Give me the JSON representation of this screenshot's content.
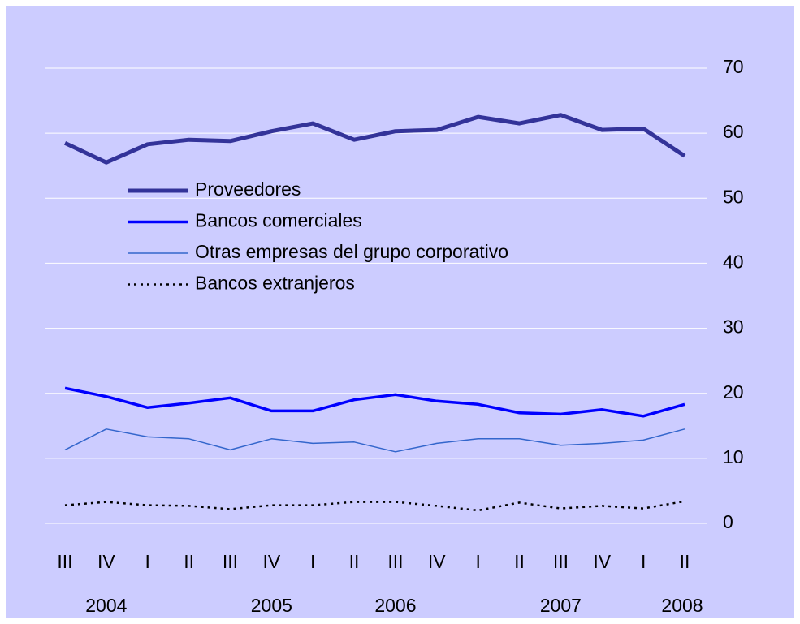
{
  "chart_data": {
    "type": "line",
    "categories": [
      "III",
      "IV",
      "I",
      "II",
      "III",
      "IV",
      "I",
      "II",
      "III",
      "IV",
      "I",
      "II",
      "III",
      "IV",
      "I",
      "II"
    ],
    "years": [
      null,
      "2004",
      null,
      null,
      null,
      "2005",
      null,
      null,
      "2006",
      null,
      null,
      null,
      "2007",
      null,
      null,
      "2008"
    ],
    "series": [
      {
        "name": "Proveedores",
        "color": "#333399",
        "linewidth": 5,
        "linestyle": "solid",
        "values": [
          58.5,
          55.5,
          58.3,
          59.0,
          58.8,
          60.3,
          61.5,
          59.0,
          60.3,
          60.5,
          62.5,
          61.5,
          62.8,
          60.5,
          60.7,
          56.5
        ]
      },
      {
        "name": "Bancos comerciales",
        "color": "#0000ff",
        "linewidth": 3.5,
        "linestyle": "solid",
        "values": [
          20.8,
          19.5,
          17.8,
          18.5,
          19.3,
          17.3,
          17.3,
          19.0,
          19.8,
          18.8,
          18.3,
          17.0,
          16.8,
          17.5,
          16.5,
          18.3
        ]
      },
      {
        "name": "Otras empresas del grupo corporativo",
        "color": "#3366cc",
        "linewidth": 1.5,
        "linestyle": "solid",
        "values": [
          11.3,
          14.5,
          13.3,
          13.0,
          11.3,
          13.0,
          12.3,
          12.5,
          11.0,
          12.3,
          13.0,
          13.0,
          12.0,
          12.3,
          12.8,
          14.5
        ]
      },
      {
        "name": "Bancos extranjeros",
        "color": "#000000",
        "linewidth": 2.5,
        "linestyle": "dotted",
        "values": [
          2.8,
          3.3,
          2.8,
          2.7,
          2.2,
          2.8,
          2.8,
          3.3,
          3.3,
          2.7,
          2.0,
          3.2,
          2.3,
          2.7,
          2.3,
          3.4
        ]
      }
    ],
    "ylim": [
      0,
      70
    ],
    "yticks": [
      0,
      10,
      20,
      30,
      40,
      50,
      60,
      70
    ],
    "grid": true
  }
}
